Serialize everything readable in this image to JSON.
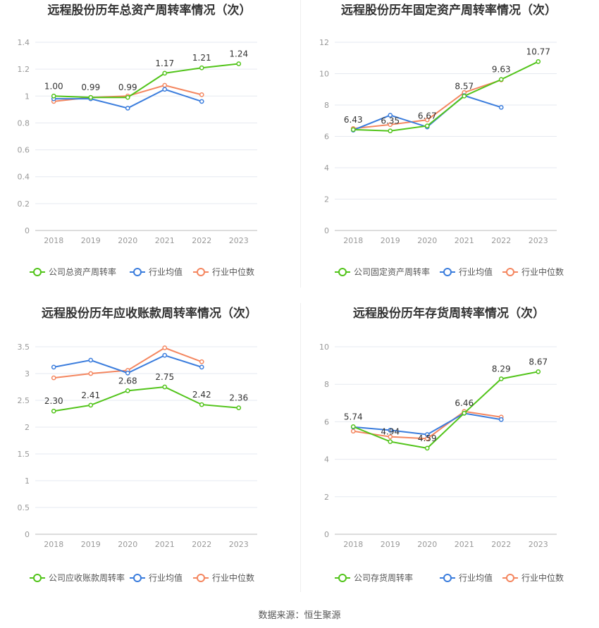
{
  "source_text": "数据来源：恒生聚源",
  "chart_data": [
    {
      "type": "line",
      "title": "远程股份历年总资产周转率情况（次）",
      "categories": [
        "2018",
        "2019",
        "2020",
        "2021",
        "2022",
        "2023"
      ],
      "ylim": [
        0,
        1.4
      ],
      "yticks": [
        "0",
        "0.2",
        "0.4",
        "0.6",
        "0.8",
        "1",
        "1.2",
        "1.4"
      ],
      "grid": true,
      "legend_position": "bottom",
      "series": [
        {
          "name": "公司总资产周转率",
          "color": "#52c41a",
          "values": [
            1.0,
            0.99,
            0.99,
            1.17,
            1.21,
            1.24
          ],
          "labels": [
            "1.00",
            "0.99",
            "0.99",
            "1.17",
            "1.21",
            "1.24"
          ]
        },
        {
          "name": "行业均值",
          "color": "#3b7ddd",
          "values": [
            0.98,
            0.98,
            0.91,
            1.05,
            0.96,
            null
          ]
        },
        {
          "name": "行业中位数",
          "color": "#f4865f",
          "values": [
            0.96,
            0.99,
            1.0,
            1.08,
            1.01,
            null
          ]
        }
      ]
    },
    {
      "type": "line",
      "title": "远程股份历年固定资产周转率情况（次）",
      "categories": [
        "2018",
        "2019",
        "2020",
        "2021",
        "2022",
        "2023"
      ],
      "ylim": [
        0,
        12
      ],
      "yticks": [
        "0",
        "2",
        "4",
        "6",
        "8",
        "10",
        "12"
      ],
      "grid": true,
      "legend_position": "bottom",
      "series": [
        {
          "name": "公司固定资产周转率",
          "color": "#52c41a",
          "values": [
            6.43,
            6.35,
            6.67,
            8.57,
            9.63,
            10.77
          ],
          "labels": [
            "6.43",
            "6.35",
            "6.67",
            "8.57",
            "9.63",
            "10.77"
          ]
        },
        {
          "name": "行业均值",
          "color": "#3b7ddd",
          "values": [
            6.4,
            7.35,
            6.6,
            8.6,
            7.85,
            null
          ]
        },
        {
          "name": "行业中位数",
          "color": "#f4865f",
          "values": [
            6.5,
            6.75,
            7.05,
            8.8,
            9.6,
            null
          ]
        }
      ]
    },
    {
      "type": "line",
      "title": "远程股份历年应收账款周转率情况（次）",
      "categories": [
        "2018",
        "2019",
        "2020",
        "2021",
        "2022",
        "2023"
      ],
      "ylim": [
        0,
        3.5
      ],
      "yticks": [
        "0",
        "0.5",
        "1",
        "1.5",
        "2",
        "2.5",
        "3",
        "3.5"
      ],
      "grid": true,
      "legend_position": "bottom",
      "series": [
        {
          "name": "公司应收账款周转率",
          "color": "#52c41a",
          "values": [
            2.3,
            2.41,
            2.68,
            2.75,
            2.42,
            2.36
          ],
          "labels": [
            "2.30",
            "2.41",
            "2.68",
            "2.75",
            "2.42",
            "2.36"
          ]
        },
        {
          "name": "行业均值",
          "color": "#3b7ddd",
          "values": [
            3.12,
            3.25,
            3.01,
            3.34,
            3.12,
            null
          ]
        },
        {
          "name": "行业中位数",
          "color": "#f4865f",
          "values": [
            2.92,
            3.0,
            3.06,
            3.48,
            3.22,
            null
          ]
        }
      ]
    },
    {
      "type": "line",
      "title": "远程股份历年存货周转率情况（次）",
      "categories": [
        "2018",
        "2019",
        "2020",
        "2021",
        "2022",
        "2023"
      ],
      "ylim": [
        0,
        10
      ],
      "yticks": [
        "0",
        "2",
        "4",
        "6",
        "8",
        "10"
      ],
      "grid": true,
      "legend_position": "bottom",
      "series": [
        {
          "name": "公司存货周转率",
          "color": "#52c41a",
          "values": [
            5.74,
            4.94,
            4.59,
            6.46,
            8.29,
            8.67
          ],
          "labels": [
            "5.74",
            "4.94",
            "4.59",
            "6.46",
            "8.29",
            "8.67"
          ]
        },
        {
          "name": "行业均值",
          "color": "#3b7ddd",
          "values": [
            5.72,
            5.55,
            5.32,
            6.45,
            6.12,
            null
          ]
        },
        {
          "name": "行业中位数",
          "color": "#f4865f",
          "values": [
            5.5,
            5.2,
            5.1,
            6.55,
            6.25,
            null
          ]
        }
      ]
    }
  ]
}
